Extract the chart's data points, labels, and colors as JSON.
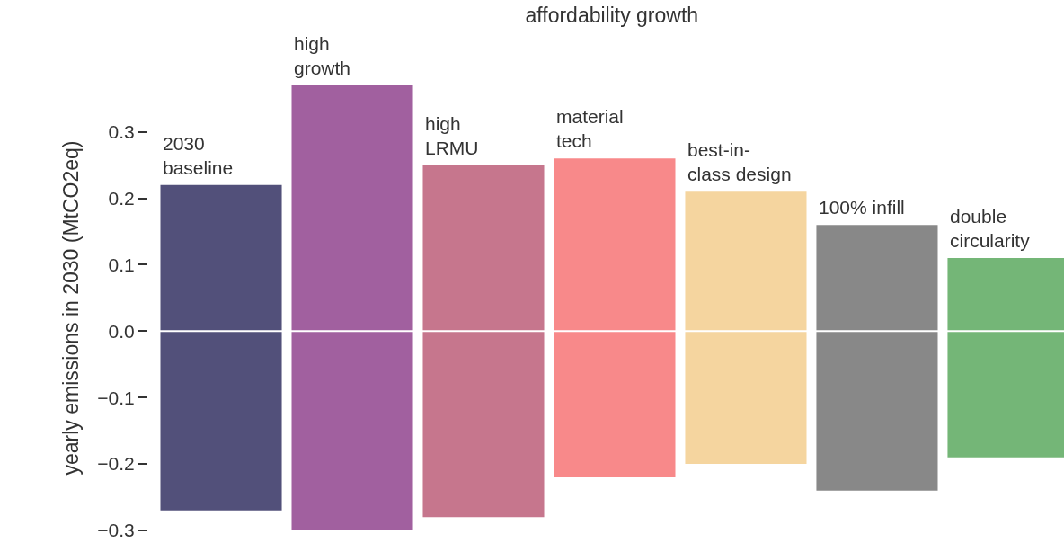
{
  "chart_data": {
    "type": "bar",
    "title": "affordability growth",
    "ylabel": "yearly emissions in 2030 (MtCO2eq)",
    "categories": [
      "2030\nbaseline",
      "high\ngrowth",
      "high\nLRMU",
      "material\ntech",
      "best-in-\nclass design",
      "100% infill",
      "double\ncircularity"
    ],
    "base": [
      -0.27,
      -0.3,
      -0.28,
      -0.22,
      -0.2,
      -0.24,
      -0.19
    ],
    "values": [
      0.49,
      0.67,
      0.53,
      0.48,
      0.41,
      0.4,
      0.3
    ],
    "colors": [
      "#52507a",
      "#a1609f",
      "#c6768d",
      "#f8898a",
      "#f5d59f",
      "#888888",
      "#74b677"
    ],
    "ylim": [
      -0.3,
      0.37
    ],
    "yticks": [
      {
        "value": -0.3,
        "label": "−0.3"
      },
      {
        "value": -0.2,
        "label": "−0.2"
      },
      {
        "value": -0.1,
        "label": "−0.1"
      },
      {
        "value": 0,
        "label": "0.0"
      },
      0.1,
      0.2,
      0.3
    ],
    "ref_lines": [
      {
        "axis": "y",
        "value": 0,
        "color": "#ffffff"
      }
    ]
  }
}
